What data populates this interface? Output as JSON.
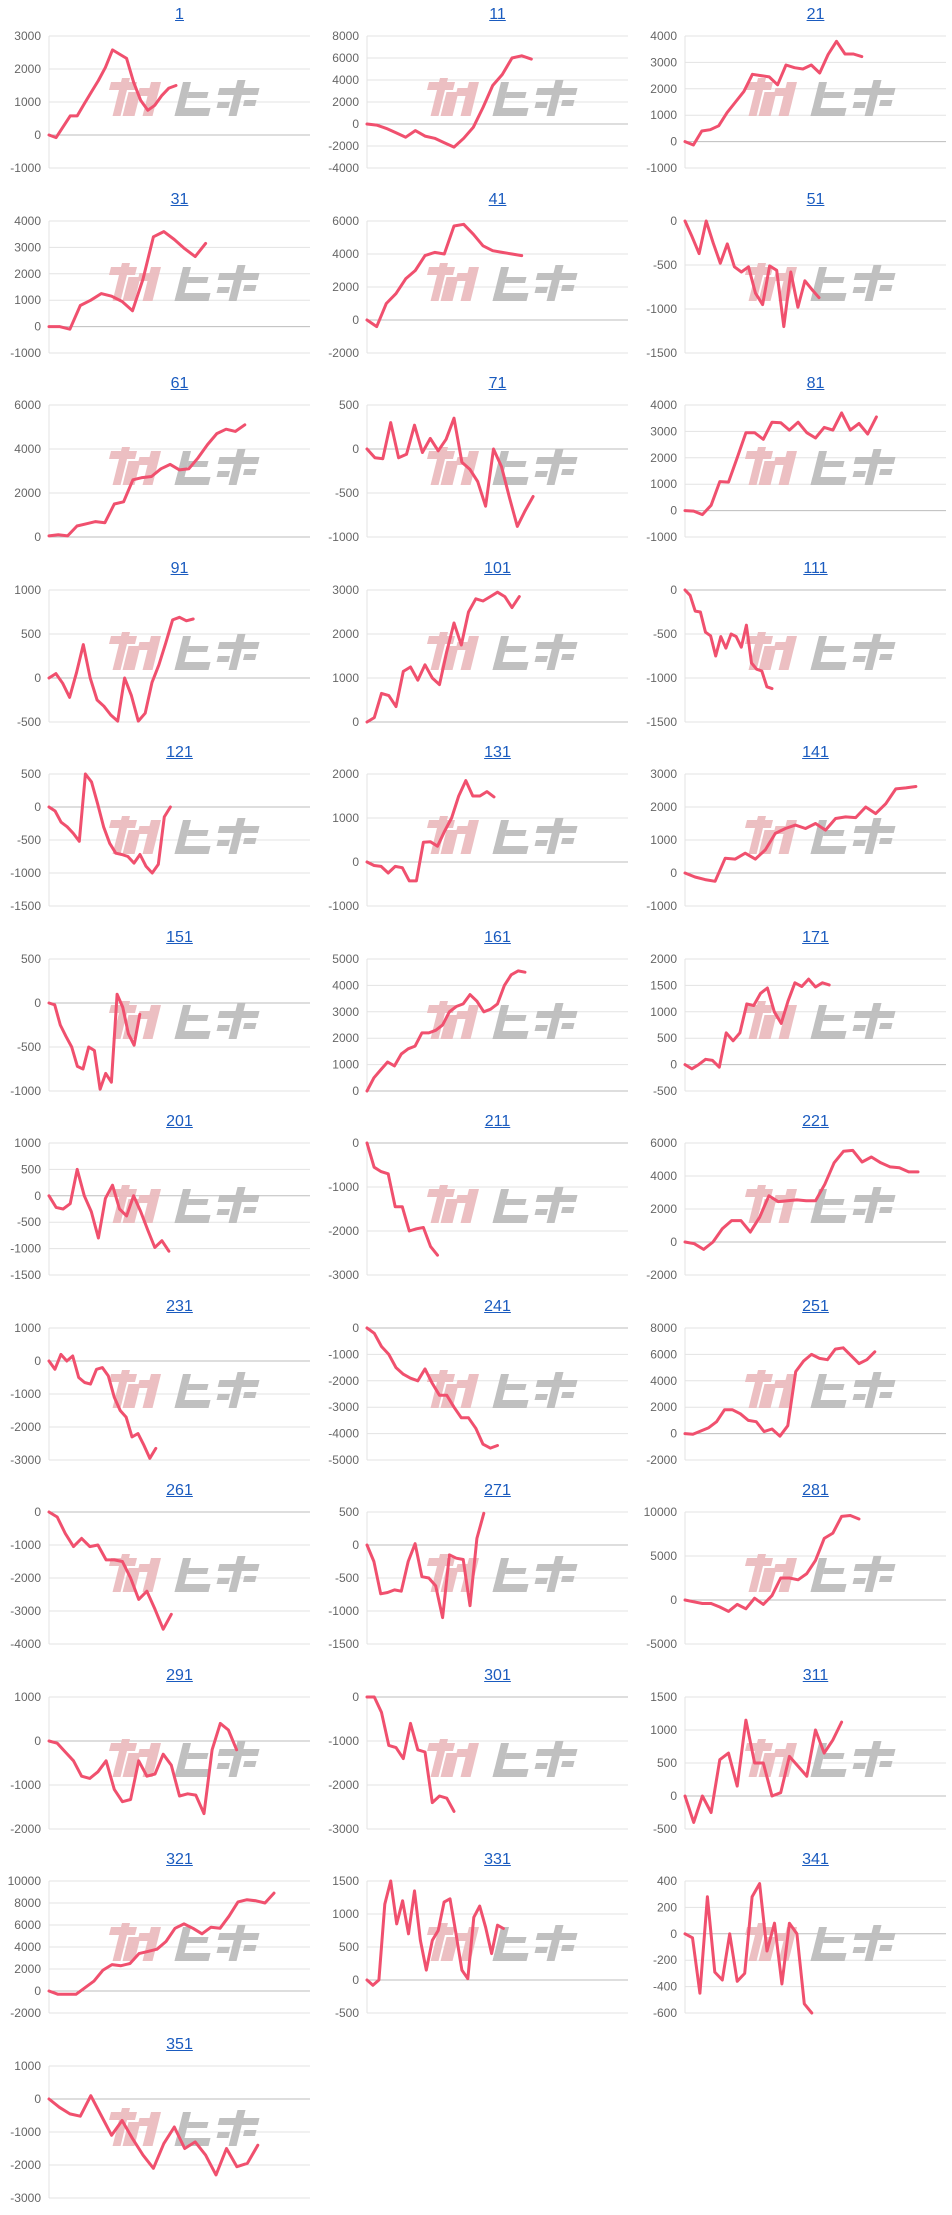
{
  "watermark": "みんレポ",
  "colors": {
    "line": "#f0506e",
    "title_link": "#1a5bbf",
    "grid": "#e3e3e3",
    "baseline": "#bdbdbd",
    "watermark_pink": "#ebbcbf",
    "watermark_gray": "#bdbdbd"
  },
  "chart_data": [
    {
      "type": "line",
      "title": "1",
      "ylim": [
        -1000,
        3000
      ],
      "yticks": [
        -1000,
        0,
        1000,
        2000,
        3000
      ],
      "xlim": [
        0,
        37
      ],
      "values": [
        0,
        -80,
        250,
        580,
        580,
        950,
        1300,
        1650,
        2050,
        2580,
        2450,
        2320,
        1600,
        1050,
        750,
        900,
        1200,
        1420,
        1500
      ]
    },
    {
      "type": "line",
      "title": "11",
      "ylim": [
        -4000,
        8000
      ],
      "yticks": [
        -4000,
        -2000,
        0,
        2000,
        4000,
        6000,
        8000
      ],
      "xlim": [
        0,
        27
      ],
      "values": [
        0,
        -100,
        -400,
        -800,
        -1200,
        -600,
        -1100,
        -1300,
        -1700,
        -2100,
        -1300,
        -300,
        1500,
        3500,
        4500,
        6000,
        6200,
        5900
      ]
    },
    {
      "type": "line",
      "title": "21",
      "ylim": [
        -1000,
        4000
      ],
      "yticks": [
        -1000,
        0,
        1000,
        2000,
        3000,
        4000
      ],
      "xlim": [
        0,
        31
      ],
      "values": [
        0,
        -130,
        400,
        450,
        600,
        1100,
        1500,
        1900,
        2550,
        2500,
        2450,
        2150,
        2900,
        2800,
        2750,
        2900,
        2600,
        3300,
        3800,
        3320,
        3320,
        3220
      ]
    },
    {
      "type": "line",
      "title": "31",
      "ylim": [
        -1000,
        4000
      ],
      "yticks": [
        -1000,
        0,
        1000,
        2000,
        3000,
        4000
      ],
      "xlim": [
        0,
        25
      ],
      "values": [
        0,
        0,
        -100,
        800,
        1000,
        1250,
        1150,
        950,
        600,
        1800,
        3400,
        3600,
        3300,
        2950,
        2650,
        3150
      ]
    },
    {
      "type": "line",
      "title": "41",
      "ylim": [
        -2000,
        6000
      ],
      "yticks": [
        -2000,
        0,
        2000,
        4000,
        6000
      ],
      "xlim": [
        0,
        27
      ],
      "values": [
        0,
        -400,
        1000,
        1600,
        2500,
        3000,
        3900,
        4100,
        4000,
        5700,
        5800,
        5200,
        4500,
        4200,
        4100,
        4000,
        3900
      ]
    },
    {
      "type": "line",
      "title": "51",
      "ylim": [
        -1500,
        0
      ],
      "yticks": [
        -1500,
        -1000,
        -500,
        0
      ],
      "xlim": [
        0,
        37
      ],
      "values": [
        0,
        -180,
        -370,
        0,
        -250,
        -480,
        -260,
        -520,
        -580,
        -520,
        -820,
        -950,
        -510,
        -560,
        -1200,
        -580,
        -980,
        -680,
        -780,
        -870
      ]
    },
    {
      "type": "line",
      "title": "61",
      "ylim": [
        0,
        6000
      ],
      "yticks": [
        0,
        2000,
        4000,
        6000
      ],
      "xlim": [
        0,
        28
      ],
      "values": [
        50,
        100,
        50,
        500,
        600,
        700,
        650,
        1500,
        1600,
        2600,
        2700,
        2750,
        3100,
        3300,
        3050,
        3100,
        3600,
        4200,
        4700,
        4900,
        4800,
        5100
      ]
    },
    {
      "type": "line",
      "title": "71",
      "ylim": [
        -1000,
        500
      ],
      "yticks": [
        -1000,
        -500,
        0,
        500
      ],
      "xlim": [
        0,
        33
      ],
      "values": [
        0,
        -100,
        -110,
        300,
        -100,
        -60,
        270,
        -40,
        120,
        -20,
        110,
        350,
        -150,
        -230,
        -370,
        -650,
        0,
        -200,
        -550,
        -880,
        -700,
        -540
      ]
    },
    {
      "type": "line",
      "title": "81",
      "ylim": [
        -1000,
        4000
      ],
      "yticks": [
        -1000,
        0,
        1000,
        2000,
        3000,
        4000
      ],
      "xlim": [
        0,
        30
      ],
      "values": [
        0,
        -20,
        -150,
        200,
        1100,
        1080,
        2000,
        2950,
        2950,
        2700,
        3350,
        3330,
        3050,
        3350,
        2950,
        2750,
        3150,
        3050,
        3700,
        3050,
        3300,
        2900,
        3550
      ]
    },
    {
      "type": "line",
      "title": "91",
      "ylim": [
        -500,
        1000
      ],
      "yticks": [
        -500,
        0,
        500,
        1000
      ],
      "xlim": [
        0,
        38
      ],
      "values": [
        0,
        50,
        -60,
        -220,
        60,
        380,
        0,
        -250,
        -320,
        -420,
        -490,
        0,
        -200,
        -490,
        -400,
        -50,
        150,
        400,
        660,
        690,
        650,
        670
      ]
    },
    {
      "type": "line",
      "title": "101",
      "ylim": [
        0,
        3000
      ],
      "yticks": [
        0,
        1000,
        2000,
        3000
      ],
      "xlim": [
        0,
        36
      ],
      "values": [
        0,
        100,
        650,
        600,
        350,
        1150,
        1250,
        950,
        1300,
        1000,
        850,
        1600,
        2250,
        1750,
        2500,
        2800,
        2750,
        2850,
        2950,
        2850,
        2600,
        2850
      ]
    },
    {
      "type": "line",
      "title": "111",
      "ylim": [
        -1500,
        0
      ],
      "yticks": [
        -1500,
        -1000,
        -500,
        0
      ],
      "xlim": [
        0,
        51
      ],
      "values": [
        0,
        -60,
        -240,
        -250,
        -480,
        -520,
        -750,
        -530,
        -660,
        -500,
        -530,
        -650,
        -400,
        -830,
        -900,
        -920,
        -1100,
        -1120
      ]
    },
    {
      "type": "line",
      "title": "121",
      "ylim": [
        -1500,
        500
      ],
      "yticks": [
        -1500,
        -1000,
        -500,
        0,
        500
      ],
      "xlim": [
        0,
        43
      ],
      "values": [
        0,
        -60,
        -230,
        -300,
        -400,
        -520,
        500,
        380,
        50,
        -300,
        -550,
        -700,
        -720,
        -750,
        -850,
        -720,
        -900,
        -1000,
        -870,
        -150,
        0
      ]
    },
    {
      "type": "line",
      "title": "131",
      "ylim": [
        -1000,
        2000
      ],
      "yticks": [
        -1000,
        0,
        1000,
        2000
      ],
      "xlim": [
        0,
        37
      ],
      "values": [
        0,
        -80,
        -100,
        -250,
        -100,
        -130,
        -430,
        -430,
        450,
        460,
        360,
        700,
        1000,
        1500,
        1850,
        1500,
        1500,
        1600,
        1480
      ]
    },
    {
      "type": "line",
      "title": "141",
      "ylim": [
        -1000,
        3000
      ],
      "yticks": [
        -1000,
        0,
        1000,
        2000,
        3000
      ],
      "xlim": [
        0,
        26
      ],
      "values": [
        0,
        -120,
        -200,
        -250,
        450,
        420,
        600,
        420,
        700,
        1200,
        1350,
        1450,
        1350,
        1500,
        1300,
        1650,
        1700,
        1680,
        2000,
        1800,
        2100,
        2550,
        2580,
        2620
      ]
    },
    {
      "type": "line",
      "title": "151",
      "ylim": [
        -1000,
        500
      ],
      "yticks": [
        -1000,
        -500,
        0,
        500
      ],
      "xlim": [
        0,
        46
      ],
      "values": [
        0,
        -20,
        -250,
        -380,
        -500,
        -720,
        -750,
        -500,
        -540,
        -980,
        -800,
        -900,
        100,
        -50,
        -350,
        -480,
        -130
      ]
    },
    {
      "type": "line",
      "title": "161",
      "ylim": [
        0,
        5000
      ],
      "yticks": [
        0,
        1000,
        2000,
        3000,
        4000,
        5000
      ],
      "xlim": [
        0,
        38
      ],
      "values": [
        0,
        500,
        800,
        1100,
        950,
        1400,
        1600,
        1700,
        2200,
        2200,
        2300,
        2500,
        3000,
        3200,
        3300,
        3650,
        3400,
        3000,
        3100,
        3300,
        4000,
        4400,
        4550,
        4500
      ]
    },
    {
      "type": "line",
      "title": "171",
      "ylim": [
        -500,
        2000
      ],
      "yticks": [
        -500,
        0,
        500,
        1000,
        1500,
        2000
      ],
      "xlim": [
        0,
        38
      ],
      "values": [
        0,
        -80,
        0,
        100,
        80,
        -50,
        600,
        450,
        600,
        1150,
        1120,
        1350,
        1450,
        1000,
        780,
        1200,
        1550,
        1480,
        1620,
        1470,
        1550,
        1510
      ]
    },
    {
      "type": "line",
      "title": "201",
      "ylim": [
        -1500,
        1000
      ],
      "yticks": [
        -1500,
        -1000,
        -500,
        0,
        500,
        1000
      ],
      "xlim": [
        0,
        37
      ],
      "values": [
        0,
        -220,
        -250,
        -150,
        500,
        0,
        -300,
        -800,
        -50,
        200,
        -250,
        -380,
        0,
        -300,
        -650,
        -980,
        -850,
        -1050
      ]
    },
    {
      "type": "line",
      "title": "211",
      "ylim": [
        -3000,
        0
      ],
      "yticks": [
        -3000,
        -2000,
        -1000,
        0
      ],
      "xlim": [
        0,
        37
      ],
      "values": [
        0,
        -550,
        -650,
        -700,
        -1450,
        -1450,
        -2000,
        -1950,
        -1920,
        -2350,
        -2550
      ]
    },
    {
      "type": "line",
      "title": "221",
      "ylim": [
        -2000,
        6000
      ],
      "yticks": [
        -2000,
        0,
        2000,
        4000,
        6000
      ],
      "xlim": [
        0,
        28
      ],
      "values": [
        0,
        -100,
        -450,
        0,
        800,
        1300,
        1300,
        600,
        1500,
        2800,
        2450,
        2500,
        2550,
        2500,
        2500,
        3500,
        4800,
        5500,
        5550,
        4850,
        5150,
        4800,
        4550,
        4500,
        4250,
        4250
      ]
    },
    {
      "type": "line",
      "title": "231",
      "ylim": [
        -3000,
        1000
      ],
      "yticks": [
        -3000,
        -2000,
        -1000,
        0,
        1000
      ],
      "xlim": [
        0,
        44
      ],
      "values": [
        0,
        -250,
        200,
        0,
        150,
        -500,
        -650,
        -700,
        -250,
        -200,
        -450,
        -1100,
        -1500,
        -1700,
        -2300,
        -2200,
        -2550,
        -2950,
        -2650
      ]
    },
    {
      "type": "line",
      "title": "241",
      "ylim": [
        -5000,
        0
      ],
      "yticks": [
        -5000,
        -4000,
        -3000,
        -2000,
        -1000,
        0
      ],
      "xlim": [
        0,
        36
      ],
      "values": [
        0,
        -200,
        -700,
        -1000,
        -1500,
        -1750,
        -1900,
        -2000,
        -1550,
        -2100,
        -2550,
        -2550,
        -3000,
        -3400,
        -3400,
        -3800,
        -4400,
        -4550,
        -4450
      ]
    },
    {
      "type": "line",
      "title": "251",
      "ylim": [
        -2000,
        8000
      ],
      "yticks": [
        -2000,
        0,
        2000,
        4000,
        6000,
        8000
      ],
      "xlim": [
        0,
        33
      ],
      "values": [
        0,
        -50,
        200,
        450,
        900,
        1800,
        1800,
        1500,
        1000,
        900,
        150,
        350,
        -200,
        600,
        4700,
        5500,
        6000,
        5700,
        5600,
        6400,
        6500,
        5900,
        5300,
        5600,
        6200
      ]
    },
    {
      "type": "line",
      "title": "261",
      "ylim": [
        -4000,
        0
      ],
      "yticks": [
        -4000,
        -3000,
        -2000,
        -1000,
        0
      ],
      "xlim": [
        0,
        32
      ],
      "values": [
        0,
        -150,
        -650,
        -1050,
        -800,
        -1050,
        -1000,
        -1450,
        -1450,
        -1500,
        -2000,
        -2650,
        -2400,
        -2950,
        -3550,
        -3100
      ]
    },
    {
      "type": "line",
      "title": "271",
      "ylim": [
        -1500,
        500
      ],
      "yticks": [
        -1500,
        -1000,
        -500,
        0,
        500
      ],
      "xlim": [
        0,
        38
      ],
      "values": [
        0,
        -250,
        -740,
        -720,
        -680,
        -700,
        -250,
        20,
        -480,
        -500,
        -620,
        -1100,
        -150,
        -200,
        -220,
        -920,
        100,
        480
      ]
    },
    {
      "type": "line",
      "title": "281",
      "ylim": [
        -5000,
        10000
      ],
      "yticks": [
        -5000,
        0,
        5000,
        10000
      ],
      "xlim": [
        0,
        30
      ],
      "values": [
        0,
        -200,
        -400,
        -400,
        -800,
        -1300,
        -500,
        -1000,
        200,
        -500,
        500,
        2500,
        2500,
        2300,
        3000,
        4500,
        7000,
        7600,
        9500,
        9600,
        9200
      ]
    },
    {
      "type": "line",
      "title": "291",
      "ylim": [
        -2000,
        1000
      ],
      "yticks": [
        -2000,
        -1000,
        0,
        1000
      ],
      "xlim": [
        0,
        32
      ],
      "values": [
        0,
        -50,
        -250,
        -450,
        -800,
        -850,
        -700,
        -450,
        -1100,
        -1380,
        -1330,
        -450,
        -800,
        -750,
        -300,
        -550,
        -1250,
        -1200,
        -1230,
        -1650,
        -200,
        400,
        250,
        -200
      ]
    },
    {
      "type": "line",
      "title": "301",
      "ylim": [
        -3000,
        0
      ],
      "yticks": [
        -3000,
        -2000,
        -1000,
        0
      ],
      "xlim": [
        0,
        36
      ],
      "values": [
        0,
        0,
        -350,
        -1100,
        -1150,
        -1400,
        -600,
        -1200,
        -1250,
        -2400,
        -2250,
        -2300,
        -2600
      ]
    },
    {
      "type": "line",
      "title": "311",
      "ylim": [
        -500,
        1500
      ],
      "yticks": [
        -500,
        0,
        500,
        1000,
        1500
      ],
      "xlim": [
        0,
        30
      ],
      "values": [
        0,
        -400,
        0,
        -250,
        550,
        650,
        150,
        1150,
        500,
        500,
        0,
        50,
        600,
        450,
        300,
        1000,
        650,
        850,
        1120
      ]
    },
    {
      "type": "line",
      "title": "321",
      "ylim": [
        -2000,
        10000
      ],
      "yticks": [
        -2000,
        0,
        2000,
        4000,
        6000,
        8000,
        10000
      ],
      "xlim": [
        0,
        29
      ],
      "values": [
        0,
        -300,
        -300,
        -300,
        300,
        900,
        1900,
        2400,
        2300,
        2500,
        3400,
        3600,
        3800,
        4500,
        5700,
        6100,
        5700,
        5200,
        5800,
        5700,
        6800,
        8100,
        8300,
        8200,
        8000,
        8900
      ]
    },
    {
      "type": "line",
      "title": "331",
      "ylim": [
        -500,
        1500
      ],
      "yticks": [
        -500,
        0,
        500,
        1000,
        1500
      ],
      "xlim": [
        0,
        44
      ],
      "values": [
        0,
        -80,
        0,
        1150,
        1500,
        850,
        1200,
        700,
        1350,
        600,
        150,
        600,
        750,
        1180,
        1230,
        700,
        150,
        20,
        950,
        1120,
        800,
        400,
        830,
        780
      ]
    },
    {
      "type": "line",
      "title": "341",
      "ylim": [
        -600,
        400
      ],
      "yticks": [
        -600,
        -400,
        -200,
        0,
        200,
        400
      ],
      "xlim": [
        0,
        35
      ],
      "values": [
        0,
        -30,
        -450,
        280,
        -290,
        -350,
        0,
        -360,
        -300,
        280,
        380,
        -130,
        80,
        -380,
        80,
        0,
        -530,
        -600
      ]
    },
    {
      "type": "line",
      "title": "351",
      "ylim": [
        -3000,
        1000
      ],
      "yticks": [
        -3000,
        -2000,
        -1000,
        0,
        1000
      ],
      "xlim": [
        0,
        25
      ],
      "values": [
        0,
        -250,
        -450,
        -520,
        100,
        -500,
        -1100,
        -650,
        -1200,
        -1700,
        -2100,
        -1350,
        -850,
        -1500,
        -1300,
        -1700,
        -2300,
        -1500,
        -2050,
        -1950,
        -1400
      ]
    }
  ]
}
